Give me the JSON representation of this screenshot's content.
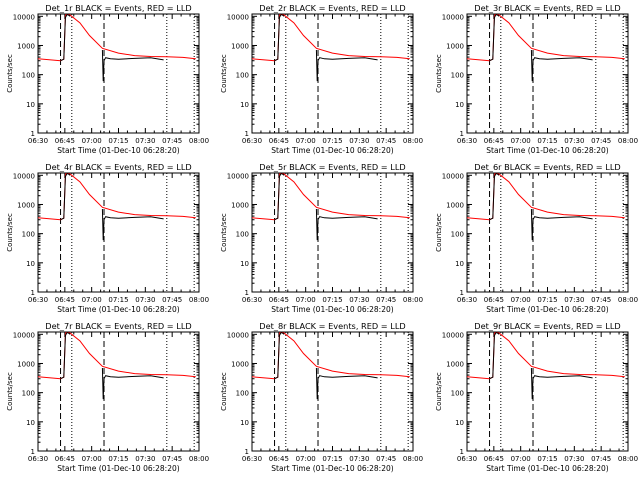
{
  "figure": {
    "background": "#ffffff",
    "axis_color": "#000000",
    "events_color": "#000000",
    "lld_color": "#ff0000"
  },
  "chart_data": [
    {
      "type": "line",
      "title": "Det_1r BLACK = Events, RED = LLD",
      "xlabel": "Start Time (01-Dec-10 06:28:20)",
      "ylabel": "Counts/sec",
      "x_ticks": [
        "06:30",
        "06:45",
        "07:00",
        "07:15",
        "07:30",
        "07:45",
        "08:00"
      ],
      "y_ticks": [
        "1",
        "10",
        "100",
        "1000",
        "10000"
      ],
      "yscale": "log",
      "xlim_min": [
        0,
        100
      ],
      "ylim": [
        1,
        12000
      ],
      "grid": false,
      "series": [
        {
          "name": "LLD",
          "color": "#ff0000",
          "x": [
            0,
            14,
            16,
            17,
            17.5,
            20,
            26,
            32,
            40,
            50,
            60,
            70,
            80,
            90,
            98
          ],
          "y": [
            350,
            300,
            340,
            10000,
            12000,
            11000,
            6000,
            2200,
            800,
            550,
            450,
            420,
            410,
            390,
            350
          ]
        },
        {
          "name": "Events",
          "color": "#000000",
          "x": [
            14,
            16,
            17,
            18,
            19,
            20
          ],
          "y": [
            300,
            340,
            9000,
            11500,
            11000,
            10000
          ]
        },
        {
          "name": "Events",
          "color": "#000000",
          "x": [
            40,
            40.5,
            41,
            42,
            45,
            50,
            60,
            70,
            78
          ],
          "y": [
            700,
            60,
            300,
            380,
            350,
            340,
            360,
            380,
            320
          ]
        }
      ],
      "markers": {
        "dashed": [
          14,
          41
        ],
        "dotted": [
          21,
          80,
          97
        ]
      }
    },
    {
      "type": "line",
      "title": "Det_2r BLACK = Events, RED = LLD",
      "xlabel": "Start Time (01-Dec-10 06:28:20)",
      "ylabel": "Counts/sec",
      "x_ticks": [
        "06:30",
        "06:45",
        "07:00",
        "07:15",
        "07:30",
        "07:45",
        "08:00"
      ],
      "y_ticks": [
        "1",
        "10",
        "100",
        "1000",
        "10000"
      ],
      "yscale": "log",
      "xlim_min": [
        0,
        100
      ],
      "ylim": [
        1,
        12000
      ],
      "grid": false,
      "series": [
        {
          "name": "LLD",
          "color": "#ff0000",
          "x": [
            0,
            14,
            16,
            17,
            17.5,
            20,
            26,
            32,
            40,
            50,
            60,
            70,
            80,
            90,
            98
          ],
          "y": [
            350,
            300,
            340,
            10000,
            12000,
            11000,
            6000,
            2200,
            800,
            550,
            450,
            420,
            410,
            390,
            350
          ]
        },
        {
          "name": "Events",
          "color": "#000000",
          "x": [
            14,
            16,
            17,
            18,
            19,
            20
          ],
          "y": [
            300,
            340,
            9000,
            11500,
            11000,
            10000
          ]
        },
        {
          "name": "Events",
          "color": "#000000",
          "x": [
            40,
            40.5,
            41,
            42,
            45,
            50,
            60,
            70,
            78
          ],
          "y": [
            700,
            60,
            300,
            380,
            350,
            340,
            360,
            380,
            320
          ]
        }
      ],
      "markers": {
        "dashed": [
          14,
          41
        ],
        "dotted": [
          21,
          80,
          97
        ]
      }
    },
    {
      "type": "line",
      "title": "Det_3r BLACK = Events, RED = LLD",
      "xlabel": "Start Time (01-Dec-10 06:28:20)",
      "ylabel": "Counts/sec",
      "x_ticks": [
        "06:30",
        "06:45",
        "07:00",
        "07:15",
        "07:30",
        "07:45",
        "08:00"
      ],
      "y_ticks": [
        "1",
        "10",
        "100",
        "1000",
        "10000"
      ],
      "yscale": "log",
      "xlim_min": [
        0,
        100
      ],
      "ylim": [
        1,
        12000
      ],
      "grid": false,
      "series": [
        {
          "name": "LLD",
          "color": "#ff0000",
          "x": [
            0,
            14,
            16,
            17,
            17.5,
            20,
            26,
            32,
            40,
            50,
            60,
            70,
            80,
            90,
            98
          ],
          "y": [
            350,
            300,
            340,
            10000,
            12000,
            11000,
            6000,
            2200,
            800,
            550,
            450,
            420,
            410,
            390,
            350
          ]
        },
        {
          "name": "Events",
          "color": "#000000",
          "x": [
            14,
            16,
            17,
            18,
            19,
            20
          ],
          "y": [
            300,
            340,
            9000,
            11500,
            11000,
            10000
          ]
        },
        {
          "name": "Events",
          "color": "#000000",
          "x": [
            40,
            40.5,
            41,
            42,
            45,
            50,
            60,
            70,
            78
          ],
          "y": [
            700,
            60,
            300,
            380,
            350,
            340,
            360,
            380,
            320
          ]
        }
      ],
      "markers": {
        "dashed": [
          14,
          41
        ],
        "dotted": [
          21,
          80,
          97
        ]
      }
    },
    {
      "type": "line",
      "title": "Det_4r BLACK = Events, RED = LLD",
      "xlabel": "Start Time (01-Dec-10 06:28:20)",
      "ylabel": "Counts/sec",
      "x_ticks": [
        "06:30",
        "06:45",
        "07:00",
        "07:15",
        "07:30",
        "07:45",
        "08:00"
      ],
      "y_ticks": [
        "1",
        "10",
        "100",
        "1000",
        "10000"
      ],
      "yscale": "log",
      "xlim_min": [
        0,
        100
      ],
      "ylim": [
        1,
        12000
      ],
      "grid": false,
      "series": [
        {
          "name": "LLD",
          "color": "#ff0000",
          "x": [
            0,
            14,
            16,
            17,
            17.5,
            20,
            26,
            32,
            40,
            50,
            60,
            70,
            80,
            90,
            98
          ],
          "y": [
            350,
            300,
            340,
            10000,
            12000,
            11000,
            6000,
            2200,
            800,
            550,
            450,
            420,
            410,
            390,
            350
          ]
        },
        {
          "name": "Events",
          "color": "#000000",
          "x": [
            14,
            16,
            17,
            18,
            19,
            20
          ],
          "y": [
            300,
            340,
            9000,
            11500,
            11000,
            10000
          ]
        },
        {
          "name": "Events",
          "color": "#000000",
          "x": [
            40,
            40.5,
            41,
            42,
            45,
            50,
            60,
            70,
            78
          ],
          "y": [
            700,
            60,
            300,
            380,
            350,
            340,
            360,
            380,
            320
          ]
        }
      ],
      "markers": {
        "dashed": [
          14,
          41
        ],
        "dotted": [
          21,
          80,
          97
        ]
      }
    },
    {
      "type": "line",
      "title": "Det_5r BLACK = Events, RED = LLD",
      "xlabel": "Start Time (01-Dec-10 06:28:20)",
      "ylabel": "Counts/sec",
      "x_ticks": [
        "06:30",
        "06:45",
        "07:00",
        "07:15",
        "07:30",
        "07:45",
        "08:00"
      ],
      "y_ticks": [
        "1",
        "10",
        "100",
        "1000",
        "10000"
      ],
      "yscale": "log",
      "xlim_min": [
        0,
        100
      ],
      "ylim": [
        1,
        12000
      ],
      "grid": false,
      "series": [
        {
          "name": "LLD",
          "color": "#ff0000",
          "x": [
            0,
            14,
            16,
            17,
            17.5,
            20,
            26,
            32,
            40,
            50,
            60,
            70,
            80,
            90,
            98
          ],
          "y": [
            350,
            300,
            340,
            10000,
            12000,
            11000,
            6000,
            2200,
            800,
            550,
            450,
            420,
            410,
            390,
            350
          ]
        },
        {
          "name": "Events",
          "color": "#000000",
          "x": [
            14,
            16,
            17,
            18,
            19,
            20
          ],
          "y": [
            300,
            340,
            9000,
            11500,
            11000,
            10000
          ]
        },
        {
          "name": "Events",
          "color": "#000000",
          "x": [
            40,
            40.5,
            41,
            42,
            45,
            50,
            60,
            70,
            78
          ],
          "y": [
            700,
            60,
            300,
            380,
            350,
            340,
            360,
            380,
            320
          ]
        }
      ],
      "markers": {
        "dashed": [
          14,
          41
        ],
        "dotted": [
          21,
          80,
          97
        ]
      }
    },
    {
      "type": "line",
      "title": "Det_6r BLACK = Events, RED = LLD",
      "xlabel": "Start Time (01-Dec-10 06:28:20)",
      "ylabel": "Counts/sec",
      "x_ticks": [
        "06:30",
        "06:45",
        "07:00",
        "07:15",
        "07:30",
        "07:45",
        "08:00"
      ],
      "y_ticks": [
        "1",
        "10",
        "100",
        "1000",
        "10000"
      ],
      "yscale": "log",
      "xlim_min": [
        0,
        100
      ],
      "ylim": [
        1,
        12000
      ],
      "grid": false,
      "series": [
        {
          "name": "LLD",
          "color": "#ff0000",
          "x": [
            0,
            14,
            16,
            17,
            17.5,
            20,
            26,
            32,
            40,
            50,
            60,
            70,
            80,
            90,
            98
          ],
          "y": [
            350,
            300,
            340,
            10000,
            12000,
            11000,
            6000,
            2200,
            800,
            550,
            450,
            420,
            410,
            390,
            350
          ]
        },
        {
          "name": "Events",
          "color": "#000000",
          "x": [
            14,
            16,
            17,
            18,
            19,
            20
          ],
          "y": [
            300,
            340,
            9000,
            11500,
            11000,
            10000
          ]
        },
        {
          "name": "Events",
          "color": "#000000",
          "x": [
            40,
            40.5,
            41,
            42,
            45,
            50,
            60,
            70,
            78
          ],
          "y": [
            700,
            60,
            300,
            380,
            350,
            340,
            360,
            380,
            320
          ]
        }
      ],
      "markers": {
        "dashed": [
          14,
          41
        ],
        "dotted": [
          21,
          80,
          97
        ]
      }
    },
    {
      "type": "line",
      "title": "Det_7r BLACK = Events, RED = LLD",
      "xlabel": "Start Time (01-Dec-10 06:28:20)",
      "ylabel": "Counts/sec",
      "x_ticks": [
        "06:30",
        "06:45",
        "07:00",
        "07:15",
        "07:30",
        "07:45",
        "08:00"
      ],
      "y_ticks": [
        "1",
        "10",
        "100",
        "1000",
        "10000"
      ],
      "yscale": "log",
      "xlim_min": [
        0,
        100
      ],
      "ylim": [
        1,
        12000
      ],
      "grid": false,
      "series": [
        {
          "name": "LLD",
          "color": "#ff0000",
          "x": [
            0,
            14,
            16,
            17,
            17.5,
            20,
            26,
            32,
            40,
            50,
            60,
            70,
            80,
            90,
            98
          ],
          "y": [
            350,
            300,
            340,
            10000,
            12000,
            11000,
            6000,
            2200,
            800,
            550,
            450,
            420,
            410,
            390,
            350
          ]
        },
        {
          "name": "Events",
          "color": "#000000",
          "x": [
            14,
            16,
            17,
            18,
            19,
            20
          ],
          "y": [
            300,
            340,
            9000,
            11500,
            11000,
            10000
          ]
        },
        {
          "name": "Events",
          "color": "#000000",
          "x": [
            40,
            40.5,
            41,
            42,
            45,
            50,
            60,
            70,
            78
          ],
          "y": [
            700,
            60,
            300,
            380,
            350,
            340,
            360,
            380,
            320
          ]
        }
      ],
      "markers": {
        "dashed": [
          14,
          41
        ],
        "dotted": [
          21,
          80,
          97
        ]
      }
    },
    {
      "type": "line",
      "title": "Det_8r BLACK = Events, RED = LLD",
      "xlabel": "Start Time (01-Dec-10 06:28:20)",
      "ylabel": "Counts/sec",
      "x_ticks": [
        "06:30",
        "06:45",
        "07:00",
        "07:15",
        "07:30",
        "07:45",
        "08:00"
      ],
      "y_ticks": [
        "1",
        "10",
        "100",
        "1000",
        "10000"
      ],
      "yscale": "log",
      "xlim_min": [
        0,
        100
      ],
      "ylim": [
        1,
        12000
      ],
      "grid": false,
      "series": [
        {
          "name": "LLD",
          "color": "#ff0000",
          "x": [
            0,
            14,
            16,
            17,
            17.5,
            20,
            26,
            32,
            40,
            50,
            60,
            70,
            80,
            90,
            98
          ],
          "y": [
            350,
            300,
            340,
            10000,
            12000,
            11000,
            6000,
            2200,
            800,
            550,
            450,
            420,
            410,
            390,
            350
          ]
        },
        {
          "name": "Events",
          "color": "#000000",
          "x": [
            14,
            16,
            17,
            18,
            19,
            20
          ],
          "y": [
            300,
            340,
            9000,
            11500,
            11000,
            10000
          ]
        },
        {
          "name": "Events",
          "color": "#000000",
          "x": [
            40,
            40.5,
            41,
            42,
            45,
            50,
            60,
            70,
            78
          ],
          "y": [
            700,
            60,
            300,
            380,
            350,
            340,
            360,
            380,
            320
          ]
        }
      ],
      "markers": {
        "dashed": [
          14,
          41
        ],
        "dotted": [
          21,
          80,
          97
        ]
      }
    },
    {
      "type": "line",
      "title": "Det_9r BLACK = Events, RED = LLD",
      "xlabel": "Start Time (01-Dec-10 06:28:20)",
      "ylabel": "Counts/sec",
      "x_ticks": [
        "06:30",
        "06:45",
        "07:00",
        "07:15",
        "07:30",
        "07:45",
        "08:00"
      ],
      "y_ticks": [
        "1",
        "10",
        "100",
        "1000",
        "10000"
      ],
      "yscale": "log",
      "xlim_min": [
        0,
        100
      ],
      "ylim": [
        1,
        12000
      ],
      "grid": false,
      "series": [
        {
          "name": "LLD",
          "color": "#ff0000",
          "x": [
            0,
            14,
            16,
            17,
            17.5,
            20,
            26,
            32,
            40,
            50,
            60,
            70,
            80,
            90,
            98
          ],
          "y": [
            350,
            300,
            340,
            10000,
            12000,
            11000,
            6000,
            2200,
            800,
            550,
            450,
            420,
            410,
            390,
            350
          ]
        },
        {
          "name": "Events",
          "color": "#000000",
          "x": [
            14,
            16,
            17,
            18,
            19,
            20
          ],
          "y": [
            300,
            340,
            9000,
            11500,
            11000,
            10000
          ]
        },
        {
          "name": "Events",
          "color": "#000000",
          "x": [
            40,
            40.5,
            41,
            42,
            45,
            50,
            60,
            70,
            78
          ],
          "y": [
            700,
            60,
            300,
            380,
            350,
            340,
            360,
            380,
            320
          ]
        }
      ],
      "markers": {
        "dashed": [
          14,
          41
        ],
        "dotted": [
          21,
          80,
          97
        ]
      }
    }
  ]
}
